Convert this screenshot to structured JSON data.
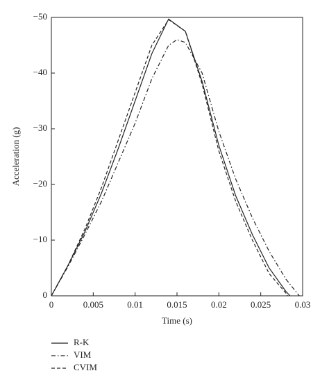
{
  "chart_data": {
    "type": "line",
    "x_label": "Time (s)",
    "y_label": "Acceleration (g)",
    "xlim": [
      0,
      0.03
    ],
    "xticks": [
      0,
      0.005,
      0.01,
      0.015,
      0.02,
      0.025,
      0.03
    ],
    "ylim": [
      0,
      -50
    ],
    "yticks": [
      0,
      {
        "value": -10,
        "label": "−10"
      },
      {
        "value": -20,
        "label": "−20"
      },
      {
        "value": -30,
        "label": "−30"
      },
      {
        "value": -40,
        "label": "−40"
      },
      {
        "value": -50,
        "label": "−50"
      }
    ],
    "series": [
      {
        "name": "R-K",
        "color": "#222222",
        "dash": "solid",
        "x": [
          0,
          0.002,
          0.004,
          0.006,
          0.008,
          0.01,
          0.012,
          0.014,
          0.016,
          0.018,
          0.02,
          0.022,
          0.024,
          0.026,
          0.028,
          0.0285
        ],
        "values": [
          0,
          -5.5,
          -11.5,
          -18.5,
          -26.5,
          -35,
          -43.5,
          -49.7,
          -47.5,
          -38.5,
          -27,
          -18,
          -11,
          -5,
          -0.8,
          0
        ]
      },
      {
        "name": "VIM",
        "color": "#222222",
        "dash": "dashdot",
        "x": [
          0,
          0.002,
          0.004,
          0.006,
          0.008,
          0.01,
          0.012,
          0.014,
          0.015,
          0.016,
          0.018,
          0.02,
          0.022,
          0.024,
          0.026,
          0.028,
          0.0296
        ],
        "values": [
          0,
          -5.3,
          -11,
          -17,
          -24,
          -31,
          -39,
          -45,
          -46,
          -45.5,
          -40,
          -29.5,
          -21,
          -14,
          -8,
          -3,
          0
        ]
      },
      {
        "name": "CVIM",
        "color": "#222222",
        "dash": "dashed",
        "x": [
          0,
          0.002,
          0.004,
          0.006,
          0.008,
          0.01,
          0.012,
          0.014,
          0.016,
          0.018,
          0.02,
          0.022,
          0.024,
          0.026,
          0.028,
          0.0282
        ],
        "values": [
          0,
          -5.5,
          -12,
          -19.5,
          -28,
          -36.5,
          -45,
          -49.6,
          -47.5,
          -38,
          -26,
          -17,
          -10,
          -4,
          -0.5,
          0
        ]
      }
    ]
  }
}
